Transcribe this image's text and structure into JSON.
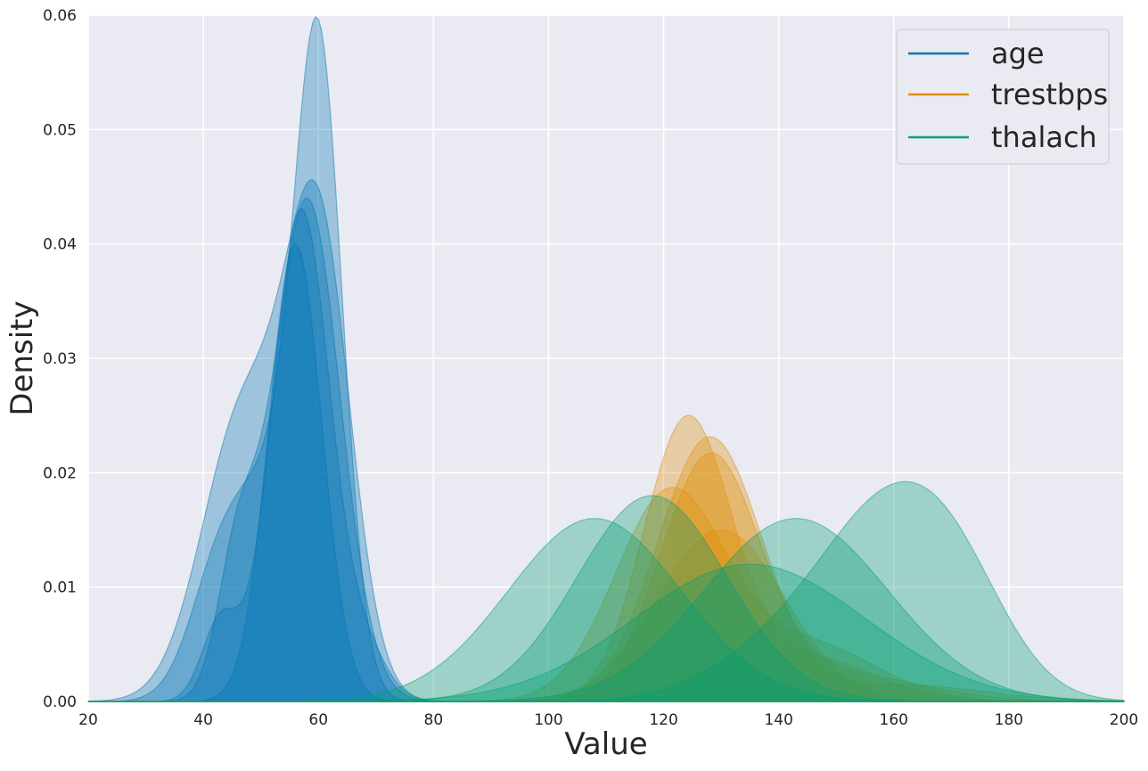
{
  "chart_data": {
    "type": "area",
    "title": "",
    "xlabel": "Value",
    "ylabel": "Density",
    "xlim": [
      20,
      200
    ],
    "ylim": [
      0,
      0.06
    ],
    "x_ticks": [
      "20",
      "40",
      "60",
      "80",
      "100",
      "120",
      "140",
      "160",
      "180",
      "200"
    ],
    "y_ticks": [
      "0.00",
      "0.01",
      "0.02",
      "0.03",
      "0.04",
      "0.05",
      "0.06"
    ],
    "grid": true,
    "legend_position": "top-right",
    "background": "#eaeaf2",
    "series": [
      {
        "name": "age",
        "color": "#0173b2",
        "curves": [
          {
            "peaks": [
              [
                47,
                0.025,
                7.2
              ],
              [
                60,
                0.04,
                5.6
              ]
            ]
          },
          {
            "peaks": [
              [
                60,
                0.057,
                4.2
              ],
              [
                44,
                0.014,
                5.5
              ],
              [
                52,
                0.012,
                4.5
              ]
            ]
          },
          {
            "peaks": [
              [
                57,
                0.043,
                5.0
              ],
              [
                43,
                0.007,
                3.2
              ],
              [
                68,
                0.004,
                4.0
              ]
            ]
          },
          {
            "peaks": [
              [
                58,
                0.044,
                5.8
              ],
              [
                46,
                0.012,
                3.5
              ]
            ]
          },
          {
            "peaks": [
              [
                56,
                0.04,
                4.6
              ]
            ]
          }
        ]
      },
      {
        "name": "trestbps",
        "color": "#de8f05",
        "curves": [
          {
            "peaks": [
              [
                124,
                0.024,
                7.5
              ],
              [
                144,
                0.004,
                12
              ]
            ]
          },
          {
            "peaks": [
              [
                128,
                0.023,
                9.0
              ],
              [
                160,
                0.0015,
                15
              ]
            ]
          },
          {
            "peaks": [
              [
                128,
                0.021,
                8.5
              ],
              [
                150,
                0.0025,
                14
              ]
            ]
          },
          {
            "peaks": [
              [
                121,
                0.018,
                9.5
              ],
              [
                145,
                0.005,
                12
              ]
            ]
          },
          {
            "peaks": [
              [
                130,
                0.015,
                11
              ]
            ]
          }
        ]
      },
      {
        "name": "thalach",
        "color": "#029e73",
        "curves": [
          {
            "peaks": [
              [
                108,
                0.016,
                15
              ]
            ]
          },
          {
            "peaks": [
              [
                118,
                0.018,
                13
              ]
            ]
          },
          {
            "peaks": [
              [
                143,
                0.016,
                16
              ]
            ]
          },
          {
            "peaks": [
              [
                160,
                0.016,
                12
              ],
              [
                172,
                0.005,
                9
              ],
              [
                140,
                0.004,
                12
              ]
            ]
          },
          {
            "peaks": [
              [
                135,
                0.012,
                20
              ]
            ]
          }
        ]
      }
    ]
  }
}
